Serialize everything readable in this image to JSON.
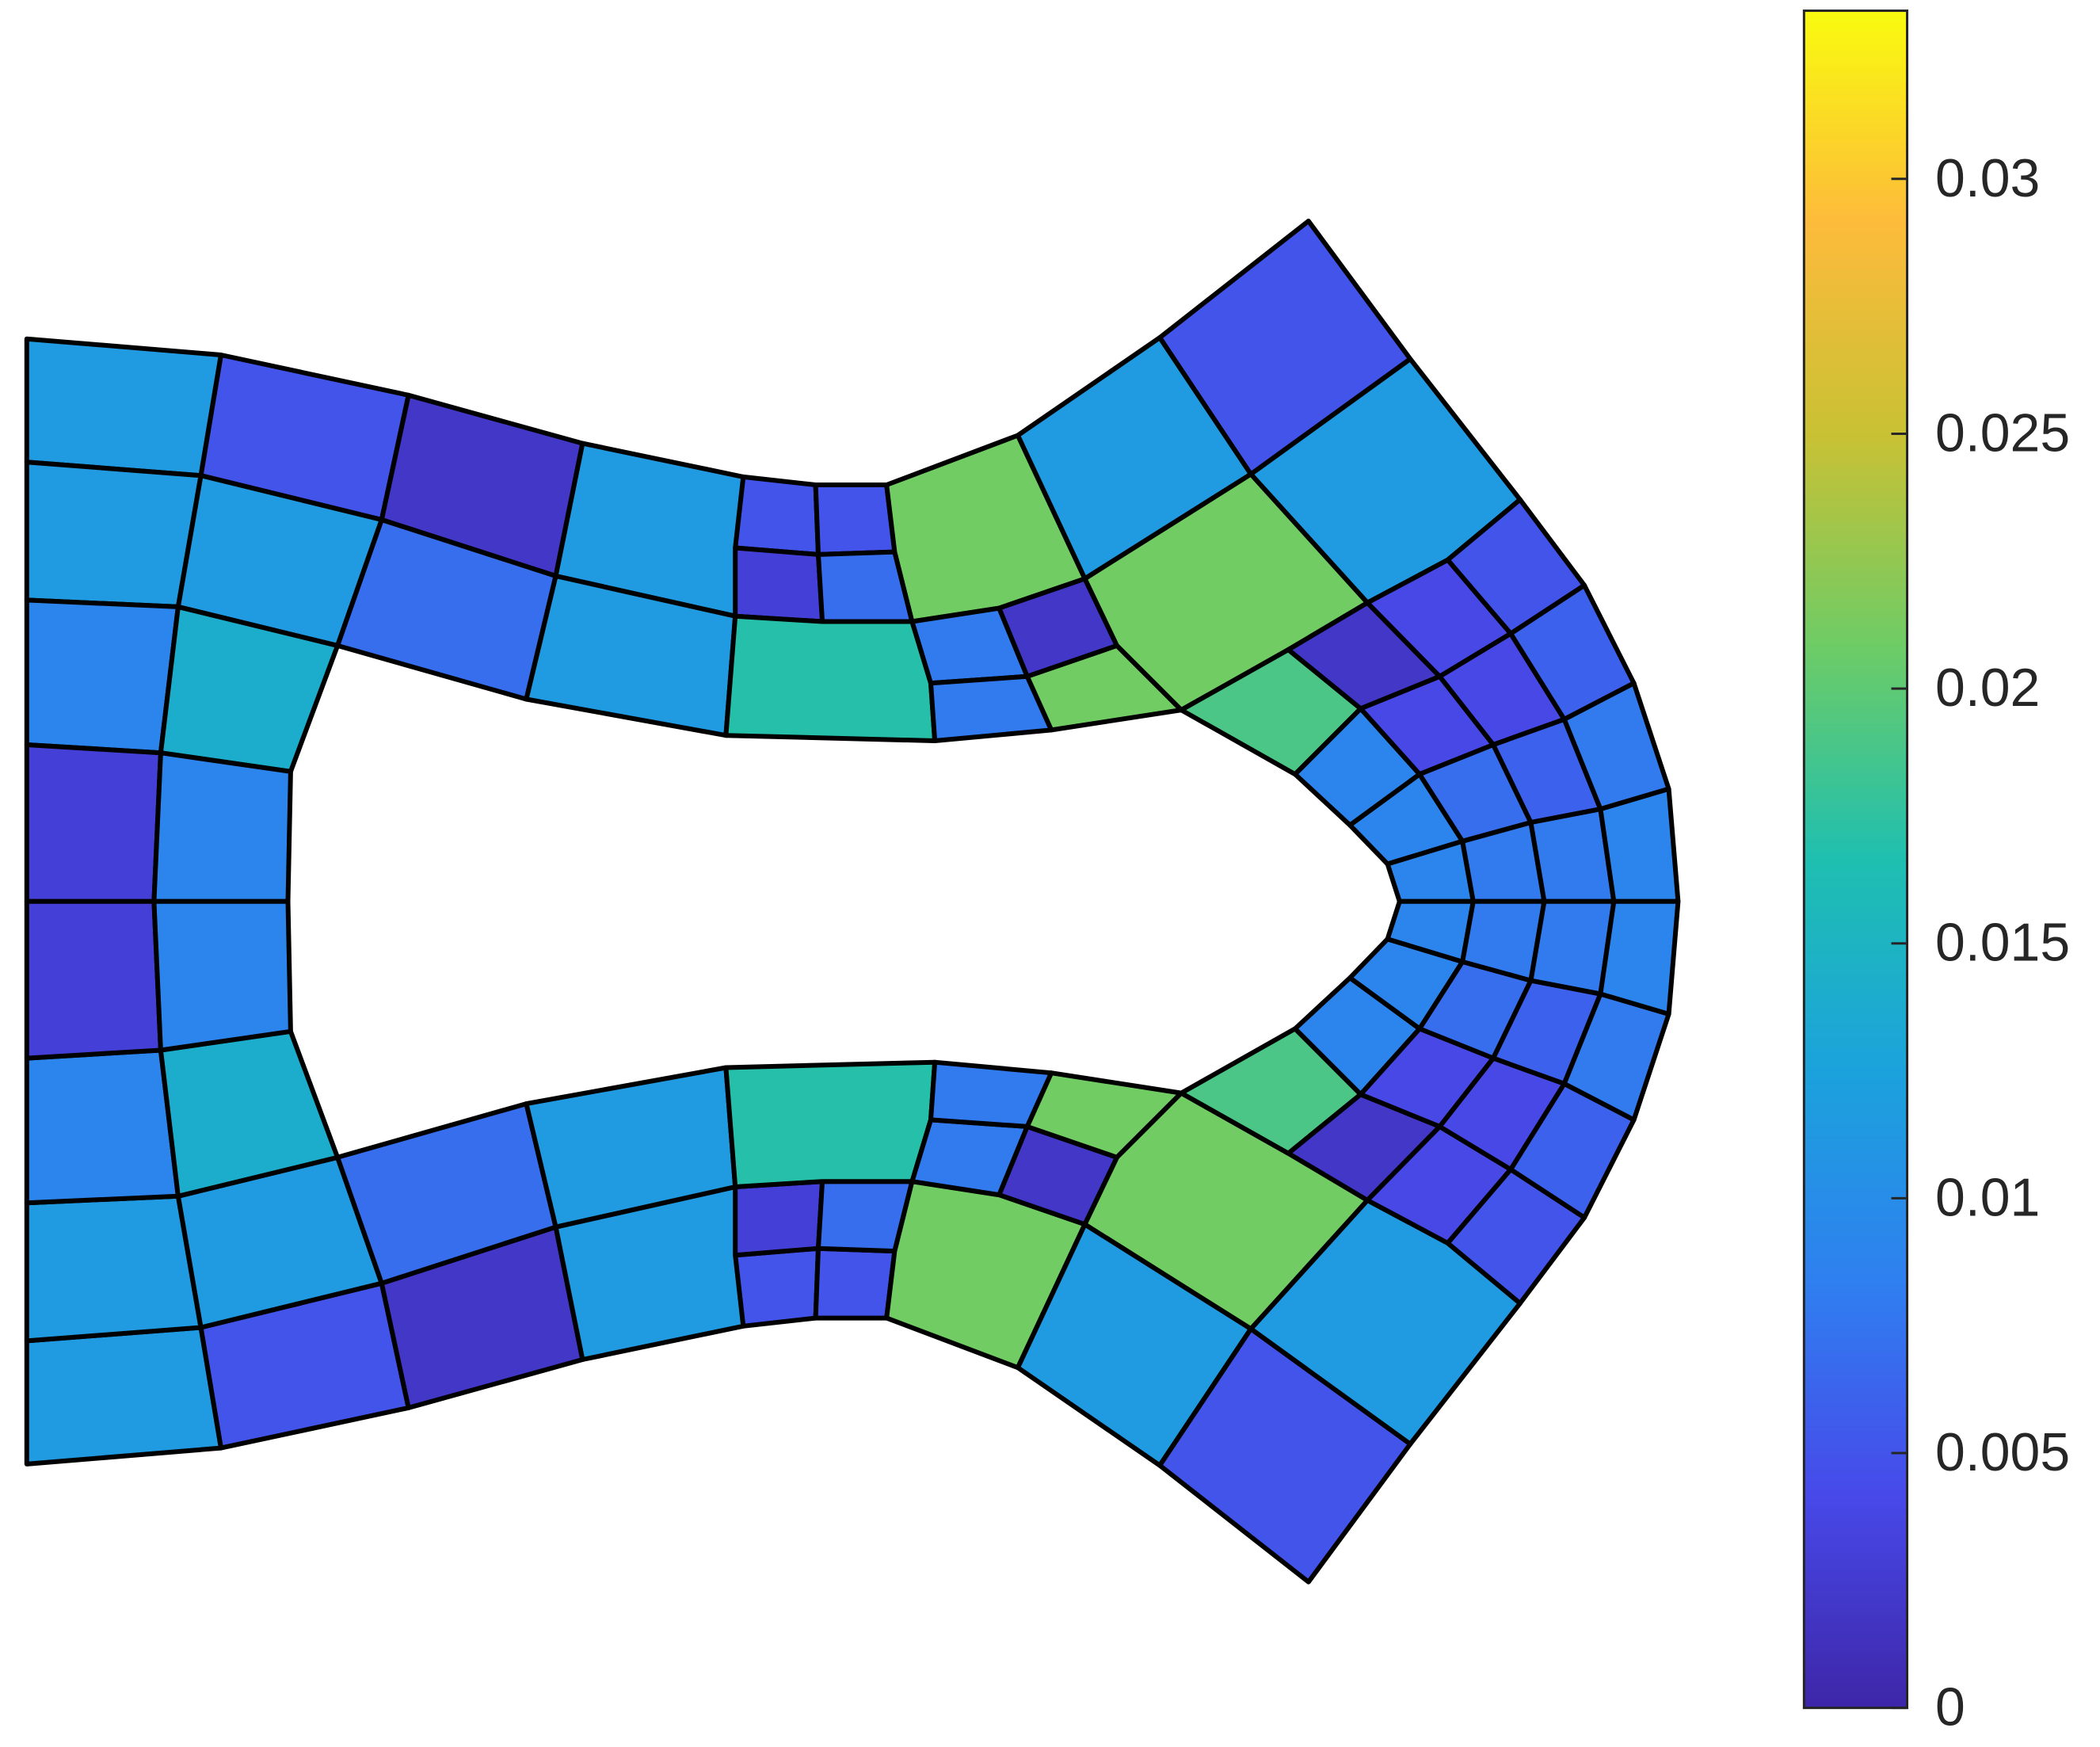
{
  "chart_data": {
    "type": "mesh",
    "values": [
      0.0115,
      0.0115,
      0.009,
      0.003,
      0.005,
      0.0115,
      0.014,
      0.009,
      0.002,
      0.007,
      0.0115,
      0.0115,
      0.005,
      0.005,
      0.003,
      0.007,
      0.017,
      0.021,
      0.008,
      0.002,
      0.008,
      0.021,
      0.0115,
      0.005,
      0.0115,
      0.021,
      0.019,
      0.002,
      0.004,
      0.005,
      0.009,
      0.004,
      0.004,
      0.006,
      0.009,
      0.007,
      0.006,
      0.008,
      0.009,
      0.008,
      0.008,
      0.009,
      0.0115,
      0.0115,
      0.009,
      0.003,
      0.005,
      0.0115,
      0.014,
      0.009,
      0.002,
      0.007,
      0.0115,
      0.0115,
      0.005,
      0.005,
      0.003,
      0.007,
      0.017,
      0.021,
      0.008,
      0.002,
      0.008,
      0.021,
      0.0115,
      0.005,
      0.0115,
      0.021,
      0.019,
      0.002,
      0.004,
      0.005,
      0.009,
      0.004,
      0.004,
      0.006,
      0.009,
      0.007,
      0.006,
      0.008,
      0.009,
      0.008,
      0.008,
      0.009
    ],
    "ylim": [
      0,
      0.0333
    ],
    "yticks": [
      0,
      0.005,
      0.01,
      0.015,
      0.02,
      0.025,
      0.03
    ],
    "colormap": [
      "#3e26a8",
      "#4749e9",
      "#2f7ff0",
      "#1ba2dc",
      "#1fbfb0",
      "#6dcc66",
      "#c9c134",
      "#fdbb3b",
      "#f9fb0e"
    ]
  }
}
